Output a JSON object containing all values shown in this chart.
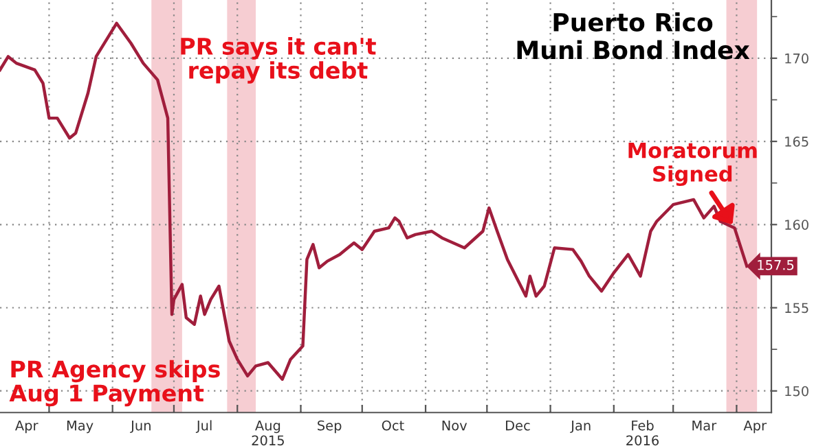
{
  "chart_data": {
    "type": "line",
    "title": "Puerto Rico\nMuni Bond Index",
    "x": [
      "2015-04-07",
      "2015-04-11",
      "2015-04-15",
      "2015-04-24",
      "2015-04-28",
      "2015-05-01",
      "2015-05-05",
      "2015-05-11",
      "2015-05-14",
      "2015-05-20",
      "2015-05-24",
      "2015-06-03",
      "2015-06-10",
      "2015-06-16",
      "2015-06-23",
      "2015-06-28",
      "2015-06-30",
      "2015-07-01",
      "2015-07-05",
      "2015-07-07",
      "2015-07-11",
      "2015-07-14",
      "2015-07-16",
      "2015-07-19",
      "2015-07-23",
      "2015-07-28",
      "2015-08-01",
      "2015-08-06",
      "2015-08-10",
      "2015-08-16",
      "2015-08-23",
      "2015-08-27",
      "2015-09-02",
      "2015-09-04",
      "2015-09-07",
      "2015-09-10",
      "2015-09-14",
      "2015-09-20",
      "2015-09-27",
      "2015-10-01",
      "2015-10-07",
      "2015-10-14",
      "2015-10-17",
      "2015-10-19",
      "2015-10-23",
      "2015-10-27",
      "2015-11-04",
      "2015-11-09",
      "2015-11-20",
      "2015-11-29",
      "2015-12-02",
      "2015-12-06",
      "2015-12-11",
      "2015-12-20",
      "2015-12-22",
      "2015-12-25",
      "2015-12-29",
      "2016-01-03",
      "2016-01-12",
      "2016-01-16",
      "2016-01-20",
      "2016-01-26",
      "2016-02-01",
      "2016-02-08",
      "2016-02-14",
      "2016-02-19",
      "2016-02-22",
      "2016-03-01",
      "2016-03-11",
      "2016-03-16",
      "2016-03-21",
      "2016-03-24",
      "2016-03-31",
      "2016-04-06"
    ],
    "series": [
      {
        "color": "#a01e3c",
        "values": [
          169.3,
          170.1,
          169.7,
          169.3,
          168.5,
          166.4,
          166.4,
          165.2,
          165.5,
          167.9,
          170.1,
          172.1,
          170.9,
          169.7,
          168.7,
          166.4,
          154.6,
          155.5,
          156.4,
          154.4,
          154.0,
          155.7,
          154.6,
          155.5,
          156.3,
          153.0,
          151.9,
          150.9,
          151.5,
          151.7,
          150.7,
          151.9,
          152.7,
          157.9,
          158.8,
          157.4,
          157.8,
          158.2,
          158.9,
          158.5,
          159.6,
          159.8,
          160.4,
          160.2,
          159.2,
          159.4,
          159.6,
          159.2,
          158.6,
          159.6,
          161.0,
          159.6,
          157.9,
          155.7,
          156.9,
          155.7,
          156.3,
          158.6,
          158.5,
          157.8,
          156.9,
          156.0,
          157.1,
          158.2,
          156.9,
          159.6,
          160.2,
          161.2,
          161.5,
          160.4,
          161.1,
          160.2,
          159.8,
          157.5
        ],
        "value_labels": [
          null,
          null,
          null,
          null,
          null,
          null,
          null,
          null,
          null,
          null,
          null,
          null,
          null,
          null,
          null,
          null,
          null,
          null,
          null,
          null,
          null,
          null,
          null,
          null,
          null,
          null,
          null,
          null,
          null,
          null,
          null,
          null,
          null,
          null,
          null,
          null,
          null,
          null,
          null,
          null,
          null,
          null,
          null,
          null,
          null,
          null,
          null,
          null,
          null,
          null,
          null,
          null,
          null,
          null,
          null,
          null,
          null,
          null,
          null,
          null,
          null,
          null,
          null,
          null,
          null,
          null,
          null,
          null,
          null,
          null,
          null,
          null,
          null,
          "157.5"
        ]
      }
    ],
    "xlim": [
      "2015-04-07",
      "2016-04-18"
    ],
    "xticks": [
      {
        "value": "2015-04-20",
        "label": "Apr"
      },
      {
        "value": "2015-05-01",
        "label": null
      },
      {
        "value": "2015-05-16",
        "label": "May"
      },
      {
        "value": "2015-06-01",
        "label": null
      },
      {
        "value": "2015-06-15",
        "label": "Jun"
      },
      {
        "value": "2015-07-01",
        "label": null
      },
      {
        "value": "2015-07-16",
        "label": "Jul"
      },
      {
        "value": "2015-08-01",
        "label": null
      },
      {
        "value": "2015-08-16",
        "label": "Aug\n2015"
      },
      {
        "value": "2015-09-01",
        "label": null
      },
      {
        "value": "2015-09-15",
        "label": "Sep"
      },
      {
        "value": "2015-10-01",
        "label": null
      },
      {
        "value": "2015-10-16",
        "label": "Oct"
      },
      {
        "value": "2015-11-01",
        "label": null
      },
      {
        "value": "2015-11-15",
        "label": "Nov"
      },
      {
        "value": "2015-12-01",
        "label": null
      },
      {
        "value": "2015-12-16",
        "label": "Dec"
      },
      {
        "value": "2016-01-01",
        "label": null
      },
      {
        "value": "2016-01-16",
        "label": "Jan"
      },
      {
        "value": "2016-02-01",
        "label": null
      },
      {
        "value": "2016-02-15",
        "label": "Feb\n2016"
      },
      {
        "value": "2016-03-01",
        "label": null
      },
      {
        "value": "2016-03-16",
        "label": "Mar"
      },
      {
        "value": "2016-04-01",
        "label": null
      },
      {
        "value": "2016-04-10",
        "label": "Apr"
      }
    ],
    "ylim": [
      148.7,
      173.5
    ],
    "yticks": [
      150,
      {
        "value": 152.5,
        "label": null
      },
      155,
      {
        "value": 157.5,
        "label": null
      },
      160,
      {
        "value": 162.5,
        "label": null
      },
      165,
      {
        "value": 167.5,
        "label": null
      },
      170,
      {
        "value": 172.5,
        "label": null
      }
    ],
    "grid": true,
    "marker": "none",
    "line_style": "solid",
    "bands": [
      {
        "axis": "x",
        "from": "2015-06-20",
        "to": "2015-07-05",
        "color": "#f6cdd2"
      },
      {
        "axis": "x",
        "from": "2015-07-27",
        "to": "2015-08-10",
        "color": "#f6cdd2"
      },
      {
        "axis": "x",
        "from": "2016-03-27",
        "to": "2016-04-11",
        "color": "#f6cdd2"
      }
    ],
    "annotations": [
      "PR says it can't\nrepay its debt",
      "PR Agency skips\nAug 1 Payment",
      {
        "text": "Moratorum\nSigned",
        "x": "2016-03-31",
        "y": 159.8
      }
    ]
  }
}
